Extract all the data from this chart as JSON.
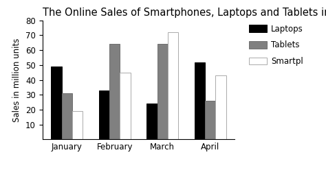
{
  "title": "The Online Sales of Smartphones, Laptops and Tablets in the First Quarter o",
  "categories": [
    "January",
    "February",
    "March",
    "April"
  ],
  "series": {
    "Laptops": [
      49,
      33,
      24,
      52
    ],
    "Tablets": [
      31,
      64,
      64,
      26
    ],
    "Smartphones": [
      19,
      45,
      72,
      43
    ]
  },
  "colors": {
    "Laptops": "#000000",
    "Tablets": "#808080",
    "Smartphones": "#ffffff"
  },
  "edge_colors": {
    "Laptops": "#000000",
    "Tablets": "#6e6e6e",
    "Smartphones": "#aaaaaa"
  },
  "ylabel": "Sales in million units",
  "ylim": [
    0,
    80
  ],
  "yticks": [
    10,
    20,
    30,
    40,
    50,
    60,
    70,
    80
  ],
  "title_fontsize": 10.5,
  "axis_fontsize": 8.5,
  "legend_fontsize": 8.5,
  "bar_width": 0.22,
  "background_color": "#ffffff",
  "legend_labels": [
    "Laptops",
    "Tablets",
    "Smartpl"
  ]
}
